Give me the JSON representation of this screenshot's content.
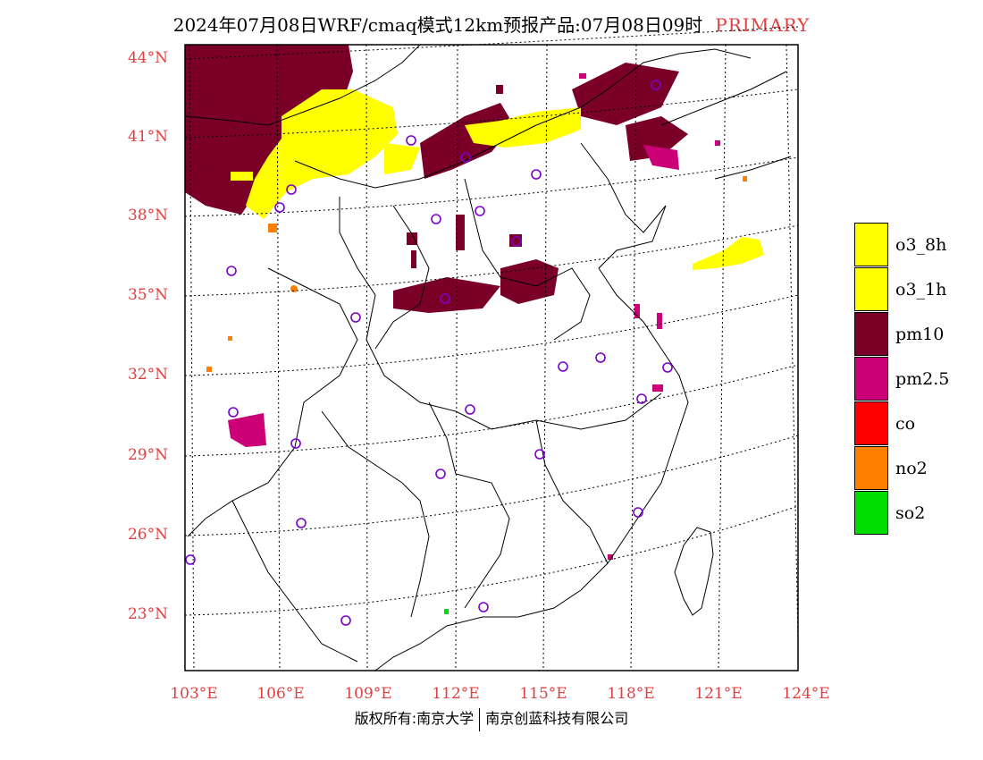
{
  "title": {
    "text": "2024年07月08日WRF/cmaq模式12km预报产品:07月08日09时",
    "tag": "PRIMARY",
    "tag_color": "#e04040"
  },
  "map": {
    "lat_labels": [
      "44°N",
      "41°N",
      "38°N",
      "35°N",
      "32°N",
      "29°N",
      "26°N",
      "23°N"
    ],
    "lon_labels": [
      "103°E",
      "106°E",
      "109°E",
      "112°E",
      "115°E",
      "118°E",
      "121°E",
      "124°E"
    ],
    "grid": "dotted",
    "label_color": "#e04040"
  },
  "legend": {
    "position": "right",
    "items": [
      {
        "label": "o3_8h",
        "color": "#ffff00"
      },
      {
        "label": "o3_1h",
        "color": "#ffff00"
      },
      {
        "label": "pm10",
        "color": "#7a0028"
      },
      {
        "label": "pm2.5",
        "color": "#cc0077"
      },
      {
        "label": "co",
        "color": "#ff0000"
      },
      {
        "label": "no2",
        "color": "#ff7f00"
      },
      {
        "label": "so2",
        "color": "#00dd00"
      }
    ]
  },
  "footer": {
    "left": "版权所有:南京大学",
    "right": "南京创蓝科技有限公司"
  },
  "colors": {
    "frame": "#000000",
    "station_marker": "#7a00cc"
  }
}
